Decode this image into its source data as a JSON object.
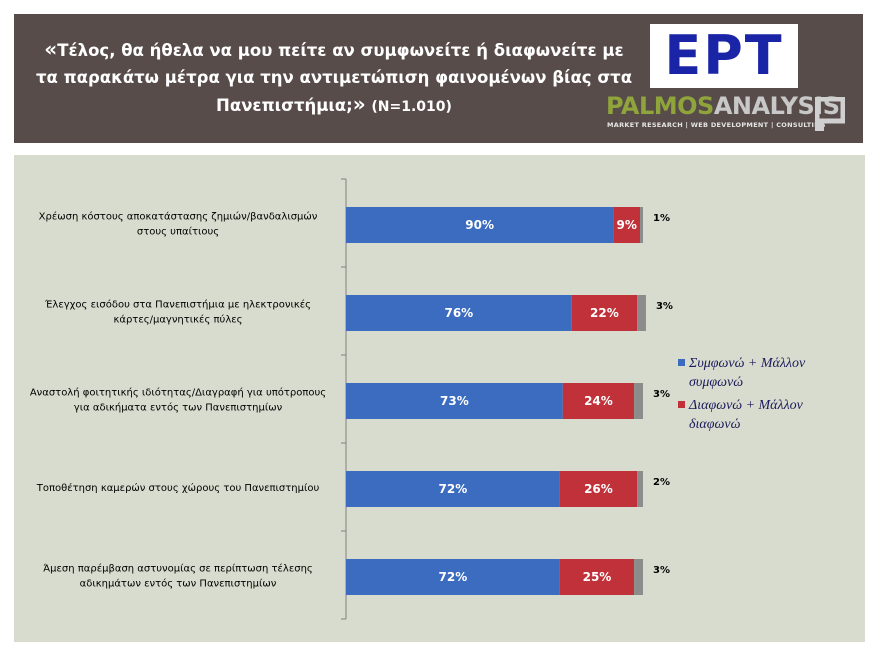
{
  "header": {
    "title_open_quote": "«",
    "title_text": "Τέλος, θα ήθελα να μου πείτε αν συμφωνείτε ή διαφωνείτε με τα παρακάτω μέτρα για την αντιμετώπιση φαινομένων βίας στα Πανεπιστήμια;",
    "title_close_quote": "»",
    "sample_size": "(N=1.010)"
  },
  "logos": {
    "ert": "ΕΡΤ",
    "palmos_part1": "PALMOS",
    "palmos_part2": "ANALYSIS",
    "palmos_tagline": "MARKET RESEARCH | WEB DEVELOPMENT | CONSULTING"
  },
  "colors": {
    "header_bg": "#574c49",
    "chart_bg": "#d8dcce",
    "agree": "#3c6cc0",
    "disagree": "#c0313a",
    "other": "#8c8c8c"
  },
  "chart_data": {
    "type": "bar",
    "orientation": "horizontal",
    "stacked": true,
    "categories": [
      [
        "Χρέωση κόστους αποκατάστασης ζημιών/βανδαλισμών",
        "στους υπαίτιους"
      ],
      [
        "Έλεγχος εισόδου στα Πανεπιστήμια με ηλεκτρονικές",
        "κάρτες/μαγνητικές πύλες"
      ],
      [
        "Αναστολή φοιτητικής ιδιότητας/Διαγραφή για υπότροπους",
        "για αδικήματα εντός των Πανεπιστημίων"
      ],
      [
        "Τοποθέτηση καμερών στους χώρους του Πανεπιστημίου"
      ],
      [
        "Άμεση παρέμβαση αστυνομίας σε περίπτωση τέλεσης",
        "αδικημάτων εντός των Πανεπιστημίων"
      ]
    ],
    "series": [
      {
        "name": "Συμφωνώ + Μάλλον συμφωνώ",
        "legend_lines": [
          "Συμφωνώ + Μάλλον",
          "συμφωνώ"
        ],
        "values": [
          90,
          76,
          73,
          72,
          72
        ],
        "color": "#3c6cc0"
      },
      {
        "name": "Διαφωνώ + Μάλλον διαφωνώ",
        "legend_lines": [
          "Διαφωνώ + Μάλλον",
          "διαφωνώ"
        ],
        "values": [
          9,
          22,
          24,
          26,
          25
        ],
        "color": "#c0313a"
      },
      {
        "values": [
          1,
          3,
          3,
          2,
          3
        ],
        "color": "#8c8c8c"
      }
    ],
    "value_labels": [
      [
        "90%",
        "9%",
        "1%"
      ],
      [
        "76%",
        "22%",
        "3%"
      ],
      [
        "73%",
        "24%",
        "3%"
      ],
      [
        "72%",
        "26%",
        "2%"
      ],
      [
        "72%",
        "25%",
        "3%"
      ]
    ],
    "legend_position": "right",
    "grid": false
  }
}
